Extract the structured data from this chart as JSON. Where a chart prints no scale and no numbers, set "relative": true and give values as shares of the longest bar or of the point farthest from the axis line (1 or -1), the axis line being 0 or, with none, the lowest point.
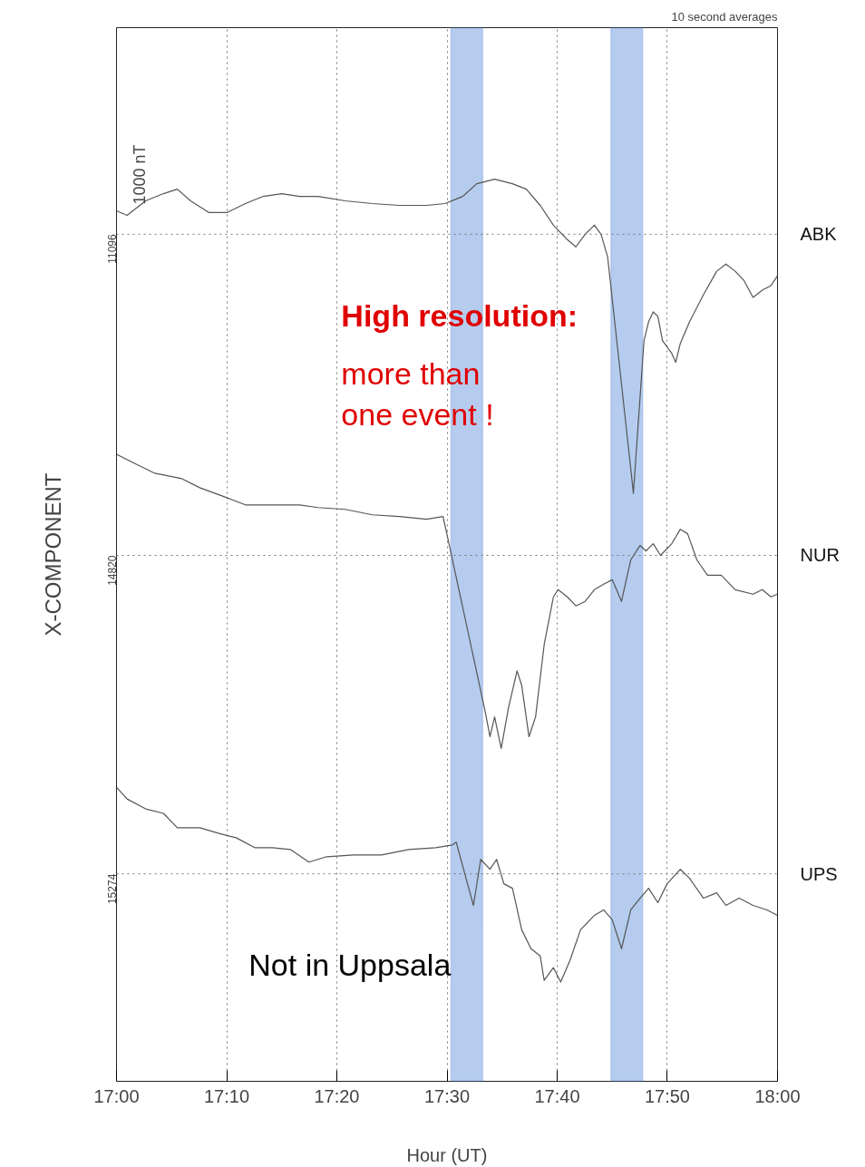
{
  "chart_data": {
    "type": "line",
    "xlabel": "Hour (UT)",
    "ylabel": "X-COMPONENT",
    "relative": true,
    "annotations": [
      "10 second averages",
      "High resolution:",
      "more than\none event !",
      "Not in Uppsala",
      "1000 nT",
      {
        "text": "15274",
        "y": 0.23
      },
      {
        "text": "14820",
        "y": 0.583
      },
      {
        "text": "11096",
        "y": 0.939
      }
    ],
    "xlim": [
      17,
      18
    ],
    "xticks": [
      {
        "value": 17,
        "label": "17:00"
      },
      {
        "value": 17.1667,
        "label": "17:10"
      },
      {
        "value": 17.3333,
        "label": "17:20"
      },
      {
        "value": 17.5,
        "label": "17:30"
      },
      {
        "value": 17.6667,
        "label": "17:40"
      },
      {
        "value": 17.8333,
        "label": "17:50"
      },
      {
        "value": 18,
        "label": "18:00"
      }
    ],
    "ref_lines": [
      {
        "axis": "y",
        "value": 0.23,
        "line_style": "dotted",
        "color": "#777777"
      },
      {
        "axis": "y",
        "value": 0.583,
        "line_style": "dotted",
        "color": "#777777"
      },
      {
        "axis": "y",
        "value": 0.939,
        "line_style": "dotted",
        "color": "#777777"
      }
    ],
    "grid": "x",
    "bands": [
      {
        "axis": "x",
        "from": 17.506,
        "to": 17.554,
        "color": "#5b8fd9"
      },
      {
        "axis": "x",
        "from": 17.748,
        "to": 17.796,
        "color": "#5b8fd9"
      }
    ],
    "series": [
      {
        "name": "ABK",
        "color": "#555555",
        "x": [
          17.0,
          17.016,
          17.044,
          17.071,
          17.092,
          17.112,
          17.14,
          17.167,
          17.195,
          17.222,
          17.25,
          17.277,
          17.305,
          17.346,
          17.387,
          17.428,
          17.469,
          17.497,
          17.524,
          17.545,
          17.572,
          17.599,
          17.62,
          17.641,
          17.661,
          17.682,
          17.695,
          17.709,
          17.723,
          17.733,
          17.743,
          17.782,
          17.798,
          17.805,
          17.812,
          17.819,
          17.826,
          17.84,
          17.846,
          17.853,
          17.867,
          17.888,
          17.908,
          17.922,
          17.936,
          17.949,
          17.963,
          17.977,
          17.99,
          18.0
        ],
        "values": [
          0.965,
          0.96,
          0.976,
          0.984,
          0.989,
          0.976,
          0.963,
          0.963,
          0.973,
          0.981,
          0.984,
          0.981,
          0.981,
          0.976,
          0.973,
          0.971,
          0.971,
          0.973,
          0.981,
          0.995,
          1.0,
          0.995,
          0.989,
          0.971,
          0.949,
          0.933,
          0.925,
          0.939,
          0.949,
          0.939,
          0.914,
          0.652,
          0.821,
          0.842,
          0.853,
          0.848,
          0.821,
          0.807,
          0.797,
          0.818,
          0.842,
          0.872,
          0.898,
          0.906,
          0.898,
          0.888,
          0.869,
          0.877,
          0.882,
          0.893
        ]
      },
      {
        "name": "NUR",
        "color": "#555555",
        "x": [
          17.0,
          17.03,
          17.058,
          17.099,
          17.126,
          17.167,
          17.195,
          17.236,
          17.277,
          17.305,
          17.346,
          17.387,
          17.428,
          17.469,
          17.494,
          17.503,
          17.558,
          17.565,
          17.572,
          17.582,
          17.593,
          17.606,
          17.613,
          17.624,
          17.634,
          17.647,
          17.661,
          17.668,
          17.682,
          17.695,
          17.709,
          17.723,
          17.737,
          17.75,
          17.764,
          17.778,
          17.792,
          17.801,
          17.812,
          17.823,
          17.84,
          17.853,
          17.864,
          17.878,
          17.894,
          17.915,
          17.936,
          17.963,
          17.977,
          17.99,
          18.0
        ],
        "values": [
          0.695,
          0.684,
          0.674,
          0.668,
          0.658,
          0.647,
          0.639,
          0.639,
          0.639,
          0.636,
          0.634,
          0.628,
          0.626,
          0.623,
          0.626,
          0.596,
          0.409,
          0.382,
          0.404,
          0.369,
          0.414,
          0.455,
          0.439,
          0.382,
          0.404,
          0.484,
          0.537,
          0.545,
          0.537,
          0.527,
          0.532,
          0.545,
          0.551,
          0.556,
          0.532,
          0.578,
          0.594,
          0.588,
          0.596,
          0.583,
          0.596,
          0.612,
          0.607,
          0.578,
          0.561,
          0.561,
          0.545,
          0.54,
          0.545,
          0.537,
          0.54
        ]
      },
      {
        "name": "UPS",
        "color": "#555555",
        "x": [
          17.0,
          17.016,
          17.044,
          17.071,
          17.092,
          17.126,
          17.154,
          17.181,
          17.209,
          17.236,
          17.263,
          17.291,
          17.318,
          17.359,
          17.401,
          17.442,
          17.483,
          17.508,
          17.514,
          17.521,
          17.531,
          17.54,
          17.551,
          17.565,
          17.575,
          17.586,
          17.599,
          17.613,
          17.627,
          17.641,
          17.647,
          17.661,
          17.672,
          17.686,
          17.702,
          17.723,
          17.737,
          17.75,
          17.764,
          17.778,
          17.792,
          17.805,
          17.819,
          17.833,
          17.853,
          17.867,
          17.888,
          17.908,
          17.922,
          17.942,
          17.963,
          17.984,
          18.0
        ],
        "values": [
          0.326,
          0.313,
          0.302,
          0.297,
          0.281,
          0.281,
          0.275,
          0.27,
          0.259,
          0.259,
          0.257,
          0.243,
          0.249,
          0.251,
          0.251,
          0.257,
          0.259,
          0.262,
          0.265,
          0.246,
          0.219,
          0.195,
          0.246,
          0.235,
          0.246,
          0.219,
          0.214,
          0.168,
          0.147,
          0.139,
          0.112,
          0.126,
          0.11,
          0.134,
          0.168,
          0.184,
          0.19,
          0.179,
          0.147,
          0.19,
          0.203,
          0.214,
          0.198,
          0.219,
          0.235,
          0.225,
          0.203,
          0.209,
          0.195,
          0.203,
          0.195,
          0.19,
          0.184
        ]
      }
    ]
  }
}
